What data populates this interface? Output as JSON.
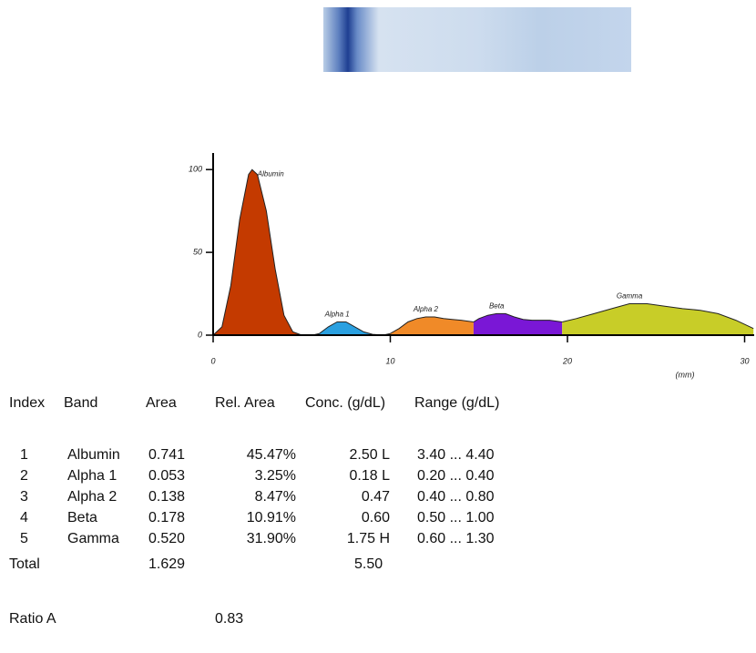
{
  "chart_data": {
    "type": "area",
    "x_label": "(mm)",
    "xlim": [
      0,
      30.5
    ],
    "ylim": [
      0,
      110
    ],
    "xticks": [
      0,
      10,
      20,
      30
    ],
    "yticks": [
      0,
      50,
      100
    ],
    "series": [
      {
        "name": "Albumin",
        "color": "#c43a00",
        "x": [
          0,
          0.5,
          1,
          1.5,
          2,
          2.2,
          2.5,
          3,
          3.5,
          4,
          4.5,
          5
        ],
        "values": [
          0,
          5,
          30,
          70,
          97,
          100,
          97,
          75,
          40,
          12,
          2,
          0
        ]
      },
      {
        "name": "Alpha 1",
        "color": "#2aa0e0",
        "x": [
          5.6,
          6,
          6.5,
          7,
          7.5,
          8,
          8.5,
          9,
          9.6
        ],
        "values": [
          0,
          1,
          5,
          8,
          8,
          5,
          2,
          0.5,
          0
        ]
      },
      {
        "name": "Alpha 2",
        "color": "#f08a28",
        "x": [
          9.6,
          10,
          10.5,
          11,
          11.5,
          12,
          12.5,
          13,
          13.5,
          14,
          14.7
        ],
        "values": [
          0,
          1,
          4,
          8,
          10,
          11,
          11,
          10,
          9.5,
          9,
          8
        ]
      },
      {
        "name": "Beta",
        "color": "#7a17d6",
        "x": [
          14.7,
          15,
          15.5,
          16,
          16.5,
          17,
          17.5,
          18,
          19,
          19.7
        ],
        "values": [
          8,
          10,
          12,
          13,
          13,
          11,
          9.5,
          9,
          9,
          8
        ]
      },
      {
        "name": "Gamma",
        "color": "#c8cd28",
        "x": [
          19.7,
          20.5,
          21.5,
          22.5,
          23.5,
          24.5,
          25.5,
          26.5,
          27.5,
          28.5,
          29.5,
          30.5
        ],
        "values": [
          8,
          10,
          13,
          16,
          19,
          19,
          17.5,
          16,
          15,
          13,
          9,
          4
        ]
      }
    ]
  },
  "table": {
    "header": [
      "Index",
      "Band",
      "Area",
      "Rel. Area",
      "Conc. (g/dL)",
      "Range (g/dL)"
    ],
    "rows": [
      [
        "1",
        "Albumin",
        "0.741",
        "45.47%",
        "2.50 L",
        "3.40 ... 4.40"
      ],
      [
        "2",
        "Alpha 1",
        "0.053",
        "3.25%",
        "0.18 L",
        "0.20 ... 0.40"
      ],
      [
        "3",
        "Alpha 2",
        "0.138",
        "8.47%",
        "0.47",
        "0.40 ... 0.80"
      ],
      [
        "4",
        "Beta",
        "0.178",
        "10.91%",
        "0.60",
        "0.50 ... 1.00"
      ],
      [
        "5",
        "Gamma",
        "0.520",
        "31.90%",
        "1.75 H",
        "0.60 ... 1.30"
      ]
    ],
    "total": {
      "label": "Total",
      "area": "1.629",
      "conc": "5.50"
    },
    "ratio": {
      "label": "Ratio A",
      "value": "0.83"
    }
  }
}
